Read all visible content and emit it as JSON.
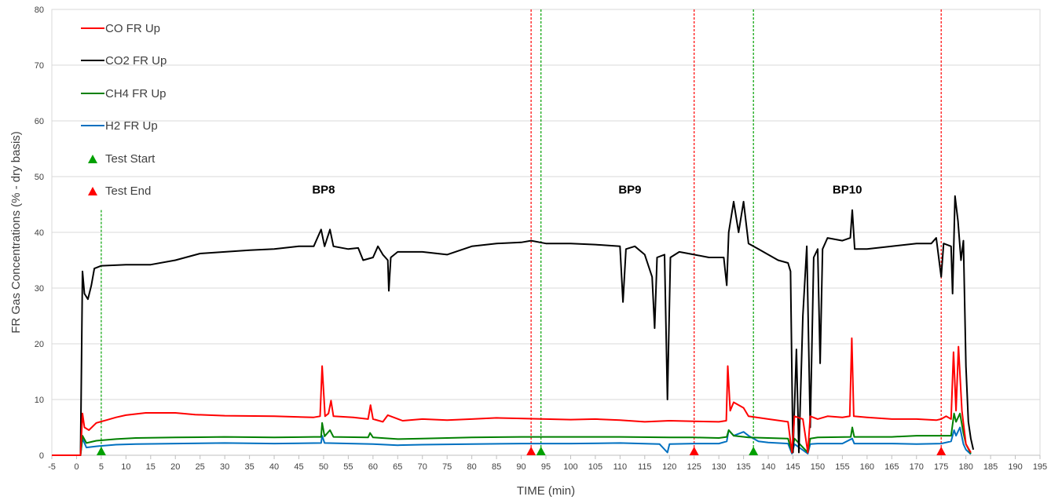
{
  "chart_data": {
    "type": "line",
    "title": "",
    "xlabel": "TIME (min)",
    "ylabel": "FR Gas Concentrations (% - dry basis)",
    "xlim": [
      -5,
      195
    ],
    "ylim": [
      0,
      80
    ],
    "x_ticks": [
      -5,
      0,
      5,
      10,
      15,
      20,
      25,
      30,
      35,
      40,
      45,
      50,
      55,
      60,
      65,
      70,
      75,
      80,
      85,
      90,
      95,
      100,
      105,
      110,
      115,
      120,
      125,
      130,
      135,
      140,
      145,
      150,
      155,
      160,
      165,
      170,
      175,
      180,
      185,
      190,
      195
    ],
    "y_ticks": [
      0,
      10,
      20,
      30,
      40,
      50,
      60,
      70,
      80
    ],
    "grid": "horizontal",
    "legend_position": "top-left",
    "colors": {
      "co": "#ff0000",
      "co2": "#000000",
      "ch4": "#008000",
      "h2": "#0070c0",
      "start": "#00a000",
      "end": "#ff0000",
      "grid": "#d9d9d9"
    },
    "series": [
      {
        "name": "CO FR Up",
        "key": "co",
        "points": [
          [
            -5,
            0
          ],
          [
            0.8,
            0
          ],
          [
            1.2,
            7.5
          ],
          [
            1.6,
            5
          ],
          [
            2.5,
            4.5
          ],
          [
            4,
            5.8
          ],
          [
            6,
            6.3
          ],
          [
            8,
            6.8
          ],
          [
            10,
            7.2
          ],
          [
            14,
            7.6
          ],
          [
            20,
            7.6
          ],
          [
            24,
            7.3
          ],
          [
            30,
            7.1
          ],
          [
            40,
            7
          ],
          [
            48,
            6.8
          ],
          [
            49.3,
            7
          ],
          [
            49.7,
            16
          ],
          [
            50.3,
            7
          ],
          [
            51,
            7.5
          ],
          [
            51.5,
            9.8
          ],
          [
            52,
            7
          ],
          [
            56,
            6.8
          ],
          [
            59,
            6.5
          ],
          [
            59.5,
            9
          ],
          [
            60,
            6.5
          ],
          [
            62,
            6
          ],
          [
            63,
            7.2
          ],
          [
            66,
            6.2
          ],
          [
            70,
            6.5
          ],
          [
            75,
            6.3
          ],
          [
            80,
            6.5
          ],
          [
            85,
            6.7
          ],
          [
            90,
            6.6
          ],
          [
            95,
            6.5
          ],
          [
            100,
            6.4
          ],
          [
            105,
            6.5
          ],
          [
            110,
            6.3
          ],
          [
            115,
            6
          ],
          [
            120,
            6.2
          ],
          [
            125,
            6.1
          ],
          [
            130,
            6
          ],
          [
            131.5,
            6.2
          ],
          [
            131.8,
            16
          ],
          [
            132.3,
            8
          ],
          [
            133,
            9.5
          ],
          [
            135,
            8.5
          ],
          [
            136,
            7
          ],
          [
            140,
            6.5
          ],
          [
            144,
            6
          ],
          [
            144.8,
            0.5
          ],
          [
            145.3,
            7
          ],
          [
            147,
            6.5
          ],
          [
            148,
            0.5
          ],
          [
            148.5,
            7
          ],
          [
            150,
            6.5
          ],
          [
            152,
            7
          ],
          [
            155,
            6.8
          ],
          [
            156.5,
            7
          ],
          [
            156.9,
            21
          ],
          [
            157.3,
            7
          ],
          [
            160,
            6.8
          ],
          [
            165,
            6.5
          ],
          [
            170,
            6.5
          ],
          [
            174,
            6.3
          ],
          [
            175,
            6.5
          ],
          [
            176,
            7
          ],
          [
            177,
            6.5
          ],
          [
            177.5,
            18.5
          ],
          [
            178,
            8
          ],
          [
            178.5,
            19.5
          ],
          [
            179.2,
            8
          ],
          [
            180,
            2
          ],
          [
            181,
            0.5
          ]
        ]
      },
      {
        "name": "CO2 FR Up",
        "key": "co2",
        "points": [
          [
            -5,
            0
          ],
          [
            0.8,
            0
          ],
          [
            1.2,
            33
          ],
          [
            1.6,
            29
          ],
          [
            2.3,
            28
          ],
          [
            3,
            30.5
          ],
          [
            3.6,
            33.5
          ],
          [
            5,
            34
          ],
          [
            10,
            34.2
          ],
          [
            15,
            34.2
          ],
          [
            20,
            35
          ],
          [
            25,
            36.2
          ],
          [
            30,
            36.5
          ],
          [
            35,
            36.8
          ],
          [
            40,
            37
          ],
          [
            45,
            37.5
          ],
          [
            48,
            37.5
          ],
          [
            49.5,
            40.5
          ],
          [
            50.2,
            37.5
          ],
          [
            51.3,
            40.5
          ],
          [
            52,
            37.5
          ],
          [
            55,
            37
          ],
          [
            57,
            37.2
          ],
          [
            58,
            35
          ],
          [
            60,
            35.5
          ],
          [
            61,
            37.5
          ],
          [
            62,
            36
          ],
          [
            63,
            35
          ],
          [
            63.2,
            29.5
          ],
          [
            63.6,
            35.5
          ],
          [
            65,
            36.5
          ],
          [
            70,
            36.5
          ],
          [
            75,
            36
          ],
          [
            80,
            37.5
          ],
          [
            85,
            38
          ],
          [
            90,
            38.2
          ],
          [
            92,
            38.5
          ],
          [
            95,
            38
          ],
          [
            100,
            38
          ],
          [
            105,
            37.8
          ],
          [
            110,
            37.5
          ],
          [
            110.6,
            27.5
          ],
          [
            111.2,
            37
          ],
          [
            113,
            37.5
          ],
          [
            115,
            36
          ],
          [
            116.5,
            32
          ],
          [
            117,
            22.8
          ],
          [
            117.5,
            35.5
          ],
          [
            119,
            36
          ],
          [
            119.6,
            10
          ],
          [
            120.2,
            35.5
          ],
          [
            122,
            36.5
          ],
          [
            125,
            36
          ],
          [
            128,
            35.5
          ],
          [
            131,
            35.5
          ],
          [
            131.6,
            30.5
          ],
          [
            132,
            40
          ],
          [
            133,
            45.5
          ],
          [
            134,
            40
          ],
          [
            135,
            45.5
          ],
          [
            136,
            38
          ],
          [
            138,
            37
          ],
          [
            140,
            36
          ],
          [
            142,
            35
          ],
          [
            144,
            34.5
          ],
          [
            144.5,
            33
          ],
          [
            145,
            0.5
          ],
          [
            145.7,
            19
          ],
          [
            146.2,
            0.5
          ],
          [
            147,
            25
          ],
          [
            147.8,
            37.5
          ],
          [
            148.5,
            5
          ],
          [
            149.2,
            35.5
          ],
          [
            150,
            37
          ],
          [
            150.5,
            16.5
          ],
          [
            151,
            37
          ],
          [
            152,
            39
          ],
          [
            155,
            38.5
          ],
          [
            156.6,
            39
          ],
          [
            157,
            44
          ],
          [
            157.5,
            37
          ],
          [
            160,
            37
          ],
          [
            165,
            37.5
          ],
          [
            170,
            38
          ],
          [
            173,
            38
          ],
          [
            174,
            39
          ],
          [
            175,
            32
          ],
          [
            175.5,
            38
          ],
          [
            177,
            37.5
          ],
          [
            177.3,
            29
          ],
          [
            177.8,
            46.5
          ],
          [
            178.4,
            42
          ],
          [
            179,
            35
          ],
          [
            179.5,
            38.5
          ],
          [
            180,
            16
          ],
          [
            180.5,
            6
          ],
          [
            181,
            3
          ],
          [
            181.5,
            1
          ]
        ]
      },
      {
        "name": "CH4 FR Up",
        "key": "ch4",
        "points": [
          [
            -5,
            0
          ],
          [
            0.8,
            0
          ],
          [
            1.2,
            3.5
          ],
          [
            2,
            2.2
          ],
          [
            4,
            2.6
          ],
          [
            8,
            2.9
          ],
          [
            12,
            3.1
          ],
          [
            20,
            3.2
          ],
          [
            30,
            3.3
          ],
          [
            40,
            3.2
          ],
          [
            48,
            3.3
          ],
          [
            49.5,
            3.3
          ],
          [
            49.7,
            5.8
          ],
          [
            50.2,
            3.4
          ],
          [
            51.3,
            4.5
          ],
          [
            52,
            3.3
          ],
          [
            59,
            3.2
          ],
          [
            59.4,
            4
          ],
          [
            60,
            3.2
          ],
          [
            65,
            2.9
          ],
          [
            70,
            3
          ],
          [
            80,
            3.2
          ],
          [
            90,
            3.3
          ],
          [
            100,
            3.3
          ],
          [
            110,
            3.3
          ],
          [
            120,
            3.2
          ],
          [
            125,
            3.2
          ],
          [
            130,
            3.1
          ],
          [
            131.6,
            3.3
          ],
          [
            132,
            4.5
          ],
          [
            133,
            3.5
          ],
          [
            136,
            3.2
          ],
          [
            140,
            3.1
          ],
          [
            144,
            3
          ],
          [
            144.8,
            0.5
          ],
          [
            145.3,
            3
          ],
          [
            148,
            0.5
          ],
          [
            148.5,
            3
          ],
          [
            150,
            3.2
          ],
          [
            156.7,
            3.3
          ],
          [
            157,
            5
          ],
          [
            157.4,
            3.3
          ],
          [
            165,
            3.3
          ],
          [
            170,
            3.5
          ],
          [
            175,
            3.5
          ],
          [
            177,
            3.5
          ],
          [
            177.6,
            7.5
          ],
          [
            178,
            6
          ],
          [
            178.8,
            7.5
          ],
          [
            179.5,
            4
          ],
          [
            180,
            2
          ],
          [
            181,
            0.3
          ]
        ]
      },
      {
        "name": "H2 FR Up",
        "key": "h2",
        "points": [
          [
            -5,
            0
          ],
          [
            0.8,
            0
          ],
          [
            1.2,
            3
          ],
          [
            2,
            1.4
          ],
          [
            4,
            1.6
          ],
          [
            8,
            1.9
          ],
          [
            12,
            2
          ],
          [
            20,
            2.1
          ],
          [
            30,
            2.2
          ],
          [
            40,
            2.1
          ],
          [
            49.5,
            2.2
          ],
          [
            49.7,
            3.5
          ],
          [
            50.2,
            2.2
          ],
          [
            60,
            2
          ],
          [
            65,
            1.8
          ],
          [
            70,
            1.9
          ],
          [
            80,
            2
          ],
          [
            90,
            2.1
          ],
          [
            100,
            2.1
          ],
          [
            110,
            2.2
          ],
          [
            118,
            2
          ],
          [
            119.6,
            0.5
          ],
          [
            120,
            2
          ],
          [
            125,
            2.1
          ],
          [
            130,
            2.1
          ],
          [
            131.6,
            2.5
          ],
          [
            132,
            4.5
          ],
          [
            133,
            3.5
          ],
          [
            135,
            4.2
          ],
          [
            136,
            3.5
          ],
          [
            138,
            2.5
          ],
          [
            140,
            2.3
          ],
          [
            144,
            2.1
          ],
          [
            144.8,
            0.3
          ],
          [
            145.3,
            2
          ],
          [
            148,
            0.3
          ],
          [
            148.5,
            2
          ],
          [
            150,
            2.1
          ],
          [
            155,
            2.1
          ],
          [
            157,
            3
          ],
          [
            157.4,
            2.1
          ],
          [
            165,
            2.1
          ],
          [
            170,
            2
          ],
          [
            175,
            2.1
          ],
          [
            177,
            2.5
          ],
          [
            177.6,
            4.5
          ],
          [
            178,
            3.5
          ],
          [
            178.8,
            5
          ],
          [
            179.5,
            2
          ],
          [
            180,
            1
          ],
          [
            181,
            0.2
          ]
        ]
      }
    ],
    "test_start_markers": [
      5,
      94,
      137
    ],
    "test_end_markers": [
      92,
      125,
      175
    ],
    "marker_labels": {
      "start": "Test Start",
      "end": "Test End"
    },
    "annotations": [
      {
        "text": "BP8",
        "x": 50,
        "y": 47
      },
      {
        "text": "BP9",
        "x": 112,
        "y": 47
      },
      {
        "text": "BP10",
        "x": 156,
        "y": 47
      }
    ]
  }
}
